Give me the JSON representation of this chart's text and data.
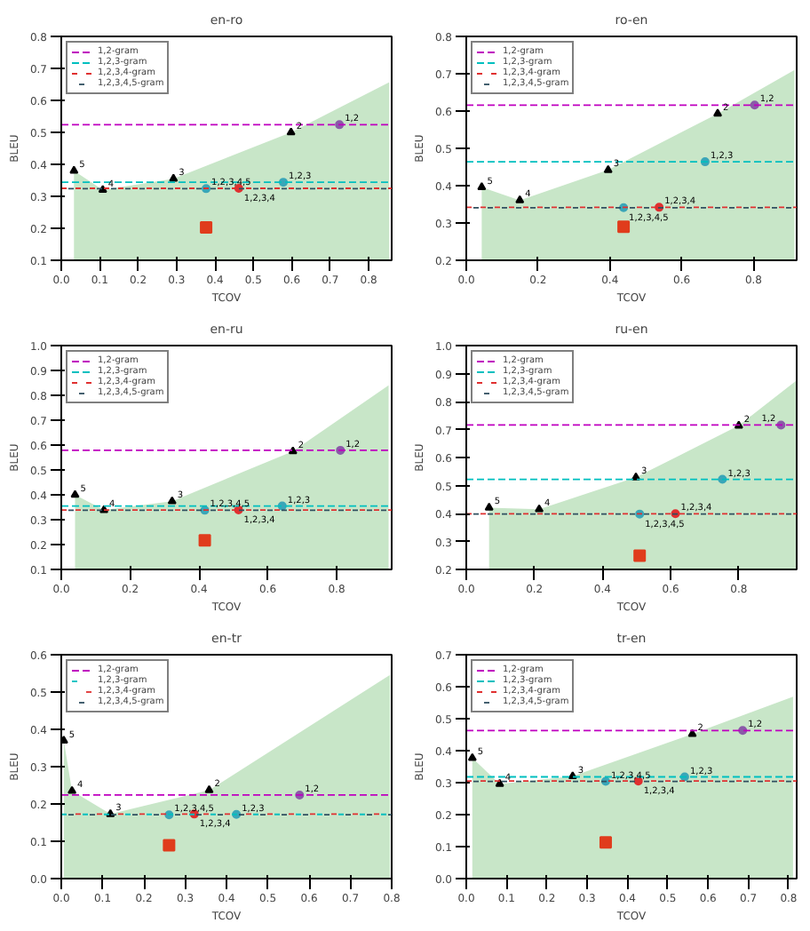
{
  "chart_data": [
    {
      "type": "area",
      "title": "en-ro",
      "xlabel": "TCOV",
      "ylabel": "BLEU",
      "xlim": [
        0,
        0.86
      ],
      "ylim": [
        0.1,
        0.8
      ],
      "legend": "top left",
      "grid": false,
      "xticks": [
        {
          "value": 0,
          "label": "0.0"
        },
        {
          "value": 0.1,
          "label": "0.1"
        },
        {
          "value": 0.2,
          "label": "0.2"
        },
        {
          "value": 0.3,
          "label": "0.3"
        },
        {
          "value": 0.4,
          "label": "0.4"
        },
        {
          "value": 0.5,
          "label": "0.5"
        },
        {
          "value": 0.6,
          "label": "0.6"
        },
        {
          "value": 0.7,
          "label": "0.7"
        },
        {
          "value": 0.8,
          "label": "0.8"
        }
      ],
      "yticks": [
        {
          "value": 0.1,
          "label": "0.1"
        },
        {
          "value": 0.2,
          "label": "0.2"
        },
        {
          "value": 0.3,
          "label": "0.3"
        },
        {
          "value": 0.4,
          "label": "0.4"
        },
        {
          "value": 0.5,
          "label": "0.5"
        },
        {
          "value": 0.6,
          "label": "0.6"
        },
        {
          "value": 0.7,
          "label": "0.7"
        },
        {
          "value": 0.8,
          "label": "0.8"
        }
      ],
      "ref_lines": [
        {
          "axis": "y",
          "value": 0.524,
          "label": "1,2-gram",
          "color": "#bf00bf",
          "line_style": "dashed"
        },
        {
          "axis": "y",
          "value": 0.344,
          "label": "1,2,3-gram",
          "color": "#00bfbf",
          "line_style": "dashed"
        },
        {
          "axis": "y",
          "value": 0.325,
          "label": "1,2,3,4-gram",
          "color": "#e03030",
          "line_style": "dashed"
        },
        {
          "axis": "y",
          "value": 0.324,
          "label": "1,2,3,4,5-gram",
          "color": "#2f4f5f",
          "line_style": "dashed"
        }
      ],
      "series": [
        {
          "color": "#c8e6c8",
          "x": [
            0.033,
            0.108,
            0.292,
            0.598,
            0.854
          ],
          "values": [
            0.38,
            0.32,
            0.355,
            0.5,
            0.657
          ]
        },
        {
          "type": "scatter",
          "marker": "triangle",
          "color": "#000000",
          "x": [
            0.033,
            0.108,
            0.292,
            0.598
          ],
          "values": [
            0.38,
            0.32,
            0.355,
            0.5
          ]
        },
        {
          "type": "scatter",
          "marker": "circle",
          "colors": [
            "#8a5aa8",
            "#3aa6b8",
            "#e03030",
            "#3aa6b8"
          ],
          "x": [
            0.724,
            0.578,
            0.462,
            0.377
          ],
          "values": [
            0.524,
            0.344,
            0.325,
            0.324
          ]
        },
        {
          "type": "scatter",
          "marker": "square",
          "color": "#e03c1c",
          "x": [
            0.377
          ],
          "values": [
            0.203
          ]
        }
      ],
      "annotations": [
        {
          "text": "5",
          "x": 0.033,
          "y": 0.38
        },
        {
          "text": "4",
          "x": 0.108,
          "y": 0.32
        },
        {
          "text": "3",
          "x": 0.292,
          "y": 0.355
        },
        {
          "text": "2",
          "x": 0.598,
          "y": 0.5
        },
        {
          "text": "1,2",
          "x": 0.724,
          "y": 0.524
        },
        {
          "text": "1,2,3",
          "x": 0.578,
          "y": 0.344
        },
        {
          "text": "1,2,3,4",
          "x": 0.462,
          "y": 0.325
        },
        {
          "text": "1,2,3,4,5",
          "x": 0.377,
          "y": 0.324
        }
      ]
    },
    {
      "type": "area",
      "title": "ro-en",
      "xlabel": "TCOV",
      "ylabel": "BLEU",
      "xlim": [
        0,
        0.92
      ],
      "ylim": [
        0.2,
        0.8
      ],
      "legend": "top left",
      "grid": false,
      "xticks": [
        {
          "value": 0,
          "label": "0.0"
        },
        {
          "value": 0.2,
          "label": "0.2"
        },
        {
          "value": 0.4,
          "label": "0.4"
        },
        {
          "value": 0.6,
          "label": "0.6"
        },
        {
          "value": 0.8,
          "label": "0.8"
        }
      ],
      "yticks": [
        {
          "value": 0.2,
          "label": "0.2"
        },
        {
          "value": 0.3,
          "label": "0.3"
        },
        {
          "value": 0.4,
          "label": "0.4"
        },
        {
          "value": 0.5,
          "label": "0.5"
        },
        {
          "value": 0.6,
          "label": "0.6"
        },
        {
          "value": 0.7,
          "label": "0.7"
        },
        {
          "value": 0.8,
          "label": "0.8"
        }
      ],
      "ref_lines": [
        {
          "axis": "y",
          "value": 0.616,
          "label": "1,2-gram",
          "color": "#bf00bf",
          "line_style": "dashed"
        },
        {
          "axis": "y",
          "value": 0.464,
          "label": "1,2,3-gram",
          "color": "#00bfbf",
          "line_style": "dashed"
        },
        {
          "axis": "y",
          "value": 0.342,
          "label": "1,2,3,4-gram",
          "color": "#e03030",
          "line_style": "dashed"
        },
        {
          "axis": "y",
          "value": 0.341,
          "label": "1,2,3,4,5-gram",
          "color": "#2f4f5f",
          "line_style": "dashed"
        }
      ],
      "series": [
        {
          "color": "#c8e6c8",
          "x": [
            0.043,
            0.149,
            0.395,
            0.7,
            0.914
          ],
          "values": [
            0.396,
            0.361,
            0.442,
            0.593,
            0.71
          ]
        },
        {
          "type": "scatter",
          "marker": "triangle",
          "color": "#000000",
          "x": [
            0.043,
            0.149,
            0.395,
            0.7
          ],
          "values": [
            0.396,
            0.361,
            0.442,
            0.593
          ]
        },
        {
          "type": "scatter",
          "marker": "circle",
          "colors": [
            "#8a5aa8",
            "#3aa6b8",
            "#e03030",
            "#3aa6b8"
          ],
          "x": [
            0.803,
            0.665,
            0.537,
            0.438
          ],
          "values": [
            0.616,
            0.464,
            0.342,
            0.341
          ]
        },
        {
          "type": "scatter",
          "marker": "square",
          "color": "#e03c1c",
          "x": [
            0.438
          ],
          "values": [
            0.29
          ]
        }
      ],
      "annotations": [
        {
          "text": "5",
          "x": 0.043,
          "y": 0.396
        },
        {
          "text": "4",
          "x": 0.149,
          "y": 0.361
        },
        {
          "text": "3",
          "x": 0.395,
          "y": 0.442
        },
        {
          "text": "2",
          "x": 0.7,
          "y": 0.593
        },
        {
          "text": "1,2",
          "x": 0.803,
          "y": 0.616
        },
        {
          "text": "1,2,3",
          "x": 0.665,
          "y": 0.464
        },
        {
          "text": "1,2,3,4",
          "x": 0.537,
          "y": 0.342
        },
        {
          "text": "1,2,3,4,5",
          "x": 0.438,
          "y": 0.341
        }
      ]
    },
    {
      "type": "area",
      "title": "en-ru",
      "xlabel": "TCOV",
      "ylabel": "BLEU",
      "xlim": [
        0,
        0.96
      ],
      "ylim": [
        0.1,
        1.0
      ],
      "legend": "top left",
      "grid": false,
      "xticks": [
        {
          "value": 0,
          "label": "0.0"
        },
        {
          "value": 0.2,
          "label": "0.2"
        },
        {
          "value": 0.4,
          "label": "0.4"
        },
        {
          "value": 0.6,
          "label": "0.6"
        },
        {
          "value": 0.8,
          "label": "0.8"
        }
      ],
      "yticks": [
        {
          "value": 0.1,
          "label": "0.1"
        },
        {
          "value": 0.2,
          "label": "0.2"
        },
        {
          "value": 0.3,
          "label": "0.3"
        },
        {
          "value": 0.4,
          "label": "0.4"
        },
        {
          "value": 0.5,
          "label": "0.5"
        },
        {
          "value": 0.6,
          "label": "0.6"
        },
        {
          "value": 0.7,
          "label": "0.7"
        },
        {
          "value": 0.8,
          "label": "0.8"
        },
        {
          "value": 0.9,
          "label": "0.9"
        },
        {
          "value": 1.0,
          "label": "1.0"
        }
      ],
      "ref_lines": [
        {
          "axis": "y",
          "value": 0.579,
          "label": "1,2-gram",
          "color": "#bf00bf",
          "line_style": "dashed"
        },
        {
          "axis": "y",
          "value": 0.355,
          "label": "1,2,3-gram",
          "color": "#00bfbf",
          "line_style": "dashed"
        },
        {
          "axis": "y",
          "value": 0.339,
          "label": "1,2,3,4-gram",
          "color": "#e03030",
          "line_style": "dashed"
        },
        {
          "axis": "y",
          "value": 0.338,
          "label": "1,2,3,4,5-gram",
          "color": "#2f4f5f",
          "line_style": "dashed"
        }
      ],
      "series": [
        {
          "color": "#c8e6c8",
          "x": [
            0.04,
            0.124,
            0.322,
            0.673,
            0.951
          ],
          "values": [
            0.4,
            0.339,
            0.374,
            0.575,
            0.84
          ]
        },
        {
          "type": "scatter",
          "marker": "triangle",
          "color": "#000000",
          "x": [
            0.04,
            0.124,
            0.322,
            0.673
          ],
          "values": [
            0.4,
            0.339,
            0.374,
            0.575
          ]
        },
        {
          "type": "scatter",
          "marker": "circle",
          "colors": [
            "#8a5aa8",
            "#3aa6b8",
            "#e03030",
            "#3aa6b8"
          ],
          "x": [
            0.811,
            0.642,
            0.515,
            0.417
          ],
          "values": [
            0.579,
            0.355,
            0.339,
            0.338
          ]
        },
        {
          "type": "scatter",
          "marker": "square",
          "color": "#e03c1c",
          "x": [
            0.417
          ],
          "values": [
            0.217
          ]
        }
      ],
      "annotations": [
        {
          "text": "5",
          "x": 0.04,
          "y": 0.4
        },
        {
          "text": "4",
          "x": 0.124,
          "y": 0.339
        },
        {
          "text": "3",
          "x": 0.322,
          "y": 0.374
        },
        {
          "text": "2",
          "x": 0.673,
          "y": 0.575
        },
        {
          "text": "1,2",
          "x": 0.811,
          "y": 0.579
        },
        {
          "text": "1,2,3",
          "x": 0.642,
          "y": 0.355
        },
        {
          "text": "1,2,3,4",
          "x": 0.515,
          "y": 0.339
        },
        {
          "text": "1,2,3,4,5",
          "x": 0.417,
          "y": 0.338
        }
      ]
    },
    {
      "type": "area",
      "title": "ru-en",
      "xlabel": "TCOV",
      "ylabel": "BLEU",
      "xlim": [
        0,
        0.97
      ],
      "ylim": [
        0.2,
        1.0
      ],
      "legend": "top left",
      "grid": false,
      "xticks": [
        {
          "value": 0,
          "label": "0.0"
        },
        {
          "value": 0.2,
          "label": "0.2"
        },
        {
          "value": 0.4,
          "label": "0.4"
        },
        {
          "value": 0.6,
          "label": "0.6"
        },
        {
          "value": 0.8,
          "label": "0.8"
        }
      ],
      "yticks": [
        {
          "value": 0.2,
          "label": "0.2"
        },
        {
          "value": 0.3,
          "label": "0.3"
        },
        {
          "value": 0.4,
          "label": "0.4"
        },
        {
          "value": 0.5,
          "label": "0.5"
        },
        {
          "value": 0.6,
          "label": "0.6"
        },
        {
          "value": 0.7,
          "label": "0.7"
        },
        {
          "value": 0.8,
          "label": "0.8"
        },
        {
          "value": 0.9,
          "label": "0.9"
        },
        {
          "value": 1.0,
          "label": "1.0"
        }
      ],
      "ref_lines": [
        {
          "axis": "y",
          "value": 0.716,
          "label": "1,2-gram",
          "color": "#bf00bf",
          "line_style": "dashed"
        },
        {
          "axis": "y",
          "value": 0.522,
          "label": "1,2,3-gram",
          "color": "#00bfbf",
          "line_style": "dashed"
        },
        {
          "axis": "y",
          "value": 0.399,
          "label": "1,2,3,4-gram",
          "color": "#e03030",
          "line_style": "dashed"
        },
        {
          "axis": "y",
          "value": 0.398,
          "label": "1,2,3,4,5-gram",
          "color": "#2f4f5f",
          "line_style": "dashed"
        }
      ],
      "series": [
        {
          "color": "#c8e6c8",
          "x": [
            0.067,
            0.214,
            0.498,
            0.8,
            0.967
          ],
          "values": [
            0.421,
            0.415,
            0.529,
            0.714,
            0.873
          ]
        },
        {
          "type": "scatter",
          "marker": "triangle",
          "color": "#000000",
          "x": [
            0.067,
            0.214,
            0.498,
            0.8
          ],
          "values": [
            0.421,
            0.415,
            0.529,
            0.714
          ]
        },
        {
          "type": "scatter",
          "marker": "circle",
          "colors": [
            "#8a5aa8",
            "#3aa6b8",
            "#e03030",
            "#3aa6b8"
          ],
          "x": [
            0.924,
            0.752,
            0.614,
            0.509
          ],
          "values": [
            0.716,
            0.522,
            0.399,
            0.398
          ]
        },
        {
          "type": "scatter",
          "marker": "square",
          "color": "#e03c1c",
          "x": [
            0.509
          ],
          "values": [
            0.249
          ]
        }
      ],
      "annotations": [
        {
          "text": "5",
          "x": 0.067,
          "y": 0.421
        },
        {
          "text": "4",
          "x": 0.214,
          "y": 0.415
        },
        {
          "text": "3",
          "x": 0.498,
          "y": 0.529
        },
        {
          "text": "2",
          "x": 0.8,
          "y": 0.714
        },
        {
          "text": "1,2",
          "x": 0.924,
          "y": 0.716
        },
        {
          "text": "1,2,3",
          "x": 0.752,
          "y": 0.522
        },
        {
          "text": "1,2,3,4",
          "x": 0.614,
          "y": 0.399
        },
        {
          "text": "1,2,3,4,5",
          "x": 0.509,
          "y": 0.398
        }
      ]
    },
    {
      "type": "area",
      "title": "en-tr",
      "xlabel": "TCOV",
      "ylabel": "BLEU",
      "xlim": [
        0,
        0.8
      ],
      "ylim": [
        0,
        0.6
      ],
      "legend": "top left",
      "grid": false,
      "xticks": [
        {
          "value": 0,
          "label": "0.0"
        },
        {
          "value": 0.1,
          "label": "0.1"
        },
        {
          "value": 0.2,
          "label": "0.2"
        },
        {
          "value": 0.3,
          "label": "0.3"
        },
        {
          "value": 0.4,
          "label": "0.4"
        },
        {
          "value": 0.5,
          "label": "0.5"
        },
        {
          "value": 0.6,
          "label": "0.6"
        },
        {
          "value": 0.7,
          "label": "0.7"
        },
        {
          "value": 0.8,
          "label": "0.8"
        }
      ],
      "yticks": [
        {
          "value": 0,
          "label": "0.0"
        },
        {
          "value": 0.1,
          "label": "0.1"
        },
        {
          "value": 0.2,
          "label": "0.2"
        },
        {
          "value": 0.3,
          "label": "0.3"
        },
        {
          "value": 0.4,
          "label": "0.4"
        },
        {
          "value": 0.5,
          "label": "0.5"
        },
        {
          "value": 0.6,
          "label": "0.6"
        }
      ],
      "ref_lines": [
        {
          "axis": "y",
          "value": 0.224,
          "label": "1,2-gram",
          "color": "#bf00bf",
          "line_style": "dashed"
        },
        {
          "axis": "y",
          "value": 0.172,
          "label": "1,2,3-gram",
          "color": "#00bfbf",
          "line_style": "dashed"
        },
        {
          "axis": "y",
          "value": 0.173,
          "label": "1,2,3,4-gram",
          "color": "#e03030",
          "line_style": "dashed"
        },
        {
          "axis": "y",
          "value": 0.171,
          "label": "1,2,3,4,5-gram",
          "color": "#2f4f5f",
          "line_style": "dashed"
        }
      ],
      "series": [
        {
          "color": "#c8e6c8",
          "x": [
            0.006,
            0.026,
            0.119,
            0.358,
            0.796
          ],
          "values": [
            0.37,
            0.235,
            0.173,
            0.237,
            0.546
          ]
        },
        {
          "type": "scatter",
          "marker": "triangle",
          "color": "#000000",
          "x": [
            0.006,
            0.026,
            0.119,
            0.358
          ],
          "values": [
            0.37,
            0.235,
            0.173,
            0.237
          ]
        },
        {
          "type": "scatter",
          "marker": "circle",
          "colors": [
            "#8a5aa8",
            "#3aa6b8",
            "#e03030",
            "#3aa6b8"
          ],
          "x": [
            0.577,
            0.424,
            0.322,
            0.261
          ],
          "values": [
            0.224,
            0.172,
            0.173,
            0.171
          ]
        },
        {
          "type": "scatter",
          "marker": "square",
          "color": "#e03c1c",
          "x": [
            0.261
          ],
          "values": [
            0.089
          ]
        }
      ],
      "annotations": [
        {
          "text": "5",
          "x": 0.006,
          "y": 0.37
        },
        {
          "text": "4",
          "x": 0.026,
          "y": 0.235
        },
        {
          "text": "3",
          "x": 0.119,
          "y": 0.173
        },
        {
          "text": "2",
          "x": 0.358,
          "y": 0.237
        },
        {
          "text": "1,2",
          "x": 0.577,
          "y": 0.224
        },
        {
          "text": "1,2,3",
          "x": 0.424,
          "y": 0.172
        },
        {
          "text": "1,2,3,4",
          "x": 0.322,
          "y": 0.173
        },
        {
          "text": "1,2,3,4,5",
          "x": 0.261,
          "y": 0.171
        }
      ]
    },
    {
      "type": "area",
      "title": "tr-en",
      "xlabel": "TCOV",
      "ylabel": "BLEU",
      "xlim": [
        0,
        0.82
      ],
      "ylim": [
        0,
        0.7
      ],
      "legend": "top left",
      "grid": false,
      "xticks": [
        {
          "value": 0,
          "label": "0.0"
        },
        {
          "value": 0.1,
          "label": "0.1"
        },
        {
          "value": 0.2,
          "label": "0.2"
        },
        {
          "value": 0.3,
          "label": "0.3"
        },
        {
          "value": 0.4,
          "label": "0.4"
        },
        {
          "value": 0.5,
          "label": "0.5"
        },
        {
          "value": 0.6,
          "label": "0.6"
        },
        {
          "value": 0.7,
          "label": "0.7"
        },
        {
          "value": 0.8,
          "label": "0.8"
        }
      ],
      "yticks": [
        {
          "value": 0,
          "label": "0.0"
        },
        {
          "value": 0.1,
          "label": "0.1"
        },
        {
          "value": 0.2,
          "label": "0.2"
        },
        {
          "value": 0.3,
          "label": "0.3"
        },
        {
          "value": 0.4,
          "label": "0.4"
        },
        {
          "value": 0.5,
          "label": "0.5"
        },
        {
          "value": 0.6,
          "label": "0.6"
        },
        {
          "value": 0.7,
          "label": "0.7"
        }
      ],
      "ref_lines": [
        {
          "axis": "y",
          "value": 0.463,
          "label": "1,2-gram",
          "color": "#bf00bf",
          "line_style": "dashed"
        },
        {
          "axis": "y",
          "value": 0.318,
          "label": "1,2,3-gram",
          "color": "#00bfbf",
          "line_style": "dashed"
        },
        {
          "axis": "y",
          "value": 0.305,
          "label": "1,2,3,4-gram",
          "color": "#e03030",
          "line_style": "dashed"
        },
        {
          "axis": "y",
          "value": 0.304,
          "label": "1,2,3,4,5-gram",
          "color": "#2f4f5f",
          "line_style": "dashed"
        }
      ],
      "series": [
        {
          "color": "#c8e6c8",
          "x": [
            0.015,
            0.083,
            0.264,
            0.561,
            0.811
          ],
          "values": [
            0.377,
            0.296,
            0.32,
            0.452,
            0.569
          ]
        },
        {
          "type": "scatter",
          "marker": "triangle",
          "color": "#000000",
          "x": [
            0.015,
            0.083,
            0.264,
            0.561
          ],
          "values": [
            0.377,
            0.296,
            0.32,
            0.452
          ]
        },
        {
          "type": "scatter",
          "marker": "circle",
          "colors": [
            "#8a5aa8",
            "#3aa6b8",
            "#e03030",
            "#3aa6b8"
          ],
          "x": [
            0.686,
            0.542,
            0.427,
            0.346
          ],
          "values": [
            0.463,
            0.318,
            0.305,
            0.304
          ]
        },
        {
          "type": "scatter",
          "marker": "square",
          "color": "#e03c1c",
          "x": [
            0.346
          ],
          "values": [
            0.113
          ]
        }
      ],
      "annotations": [
        {
          "text": "5",
          "x": 0.015,
          "y": 0.377
        },
        {
          "text": "4",
          "x": 0.083,
          "y": 0.296
        },
        {
          "text": "3",
          "x": 0.264,
          "y": 0.32
        },
        {
          "text": "2",
          "x": 0.561,
          "y": 0.452
        },
        {
          "text": "1,2",
          "x": 0.686,
          "y": 0.463
        },
        {
          "text": "1,2,3",
          "x": 0.542,
          "y": 0.318
        },
        {
          "text": "1,2,3,4",
          "x": 0.427,
          "y": 0.305
        },
        {
          "text": "1,2,3,4,5",
          "x": 0.346,
          "y": 0.304
        }
      ]
    }
  ]
}
